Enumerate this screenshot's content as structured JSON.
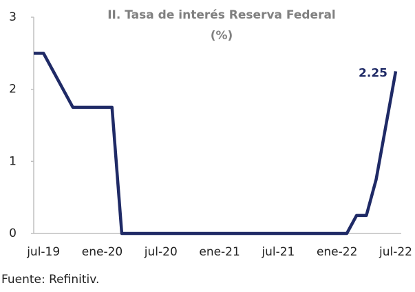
{
  "chart_data": {
    "type": "line",
    "title": "II. Tasa de interés Reserva Federal",
    "subtitle": "(%)",
    "source": "Fuente: Refinitiv.",
    "categories": [
      null,
      "jul-19",
      null,
      null,
      null,
      null,
      null,
      "ene-20",
      null,
      null,
      null,
      null,
      null,
      "jul-20",
      null,
      null,
      null,
      null,
      null,
      "ene-21",
      null,
      null,
      null,
      null,
      null,
      "jul-21",
      null,
      null,
      null,
      null,
      null,
      "ene-22",
      null,
      null,
      null,
      null,
      null,
      "jul-22"
    ],
    "series": [
      {
        "color": "#1f2a66",
        "values": [
          2.5,
          2.5,
          2.25,
          2.0,
          1.75,
          1.75,
          1.75,
          1.75,
          1.75,
          0,
          0,
          0,
          0,
          0,
          0,
          0,
          0,
          0,
          0,
          0,
          0,
          0,
          0,
          0,
          0,
          0,
          0,
          0,
          0,
          0,
          0,
          0,
          0,
          0.25,
          0.25,
          0.75,
          1.5,
          2.25
        ]
      }
    ],
    "ylim": [
      0,
      3
    ],
    "yticks": [
      0,
      1,
      2,
      3
    ]
  }
}
